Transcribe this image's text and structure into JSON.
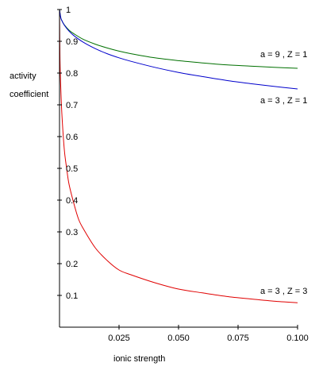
{
  "chart_data": {
    "type": "line",
    "title": "",
    "xlabel": "ionic strength",
    "ylabel_lines": [
      "activity",
      "coefficient"
    ],
    "xlim": [
      0,
      0.1
    ],
    "ylim": [
      0,
      1
    ],
    "x_ticks": [
      0.025,
      0.05,
      0.075,
      0.1
    ],
    "x_tick_labels": [
      "0.025",
      "0.050",
      "0.075",
      "0.100"
    ],
    "y_ticks": [
      0.1,
      0.2,
      0.3,
      0.4,
      0.5,
      0.6,
      0.7,
      0.8,
      0.9,
      1
    ],
    "y_tick_labels": [
      "0.1",
      "0.2",
      "0.3",
      "0.4",
      "0.5",
      "0.6",
      "0.7",
      "0.8",
      "0.9",
      "1"
    ],
    "grid": false,
    "series": [
      {
        "name": "a = 9 , Z = 1",
        "color": "#007000",
        "x": [
          0,
          0.0005,
          0.001,
          0.002,
          0.004,
          0.006,
          0.01,
          0.015,
          0.02,
          0.025,
          0.03,
          0.04,
          0.05,
          0.06,
          0.07,
          0.08,
          0.09,
          0.1
        ],
        "y": [
          1,
          0.975,
          0.965,
          0.952,
          0.935,
          0.924,
          0.906,
          0.891,
          0.879,
          0.869,
          0.861,
          0.848,
          0.839,
          0.832,
          0.826,
          0.822,
          0.818,
          0.815
        ]
      },
      {
        "name": "a = 3 , Z = 1",
        "color": "#0000cc",
        "x": [
          0,
          0.0005,
          0.001,
          0.002,
          0.004,
          0.006,
          0.01,
          0.015,
          0.02,
          0.025,
          0.03,
          0.04,
          0.05,
          0.06,
          0.07,
          0.08,
          0.09,
          0.1
        ],
        "y": [
          1,
          0.975,
          0.965,
          0.951,
          0.932,
          0.918,
          0.897,
          0.877,
          0.861,
          0.848,
          0.837,
          0.818,
          0.802,
          0.789,
          0.777,
          0.767,
          0.758,
          0.75
        ]
      },
      {
        "name": "a = 3 , Z = 3",
        "color": "#e00000",
        "x": [
          0,
          0.0002,
          0.0005,
          0.001,
          0.002,
          0.003,
          0.004,
          0.006,
          0.008,
          0.01,
          0.015,
          0.02,
          0.025,
          0.03,
          0.04,
          0.05,
          0.06,
          0.07,
          0.08,
          0.09,
          0.1
        ],
        "y": [
          1,
          0.84,
          0.76,
          0.67,
          0.56,
          0.5,
          0.45,
          0.39,
          0.34,
          0.31,
          0.25,
          0.21,
          0.18,
          0.165,
          0.14,
          0.12,
          0.108,
          0.097,
          0.089,
          0.082,
          0.077
        ]
      }
    ]
  }
}
